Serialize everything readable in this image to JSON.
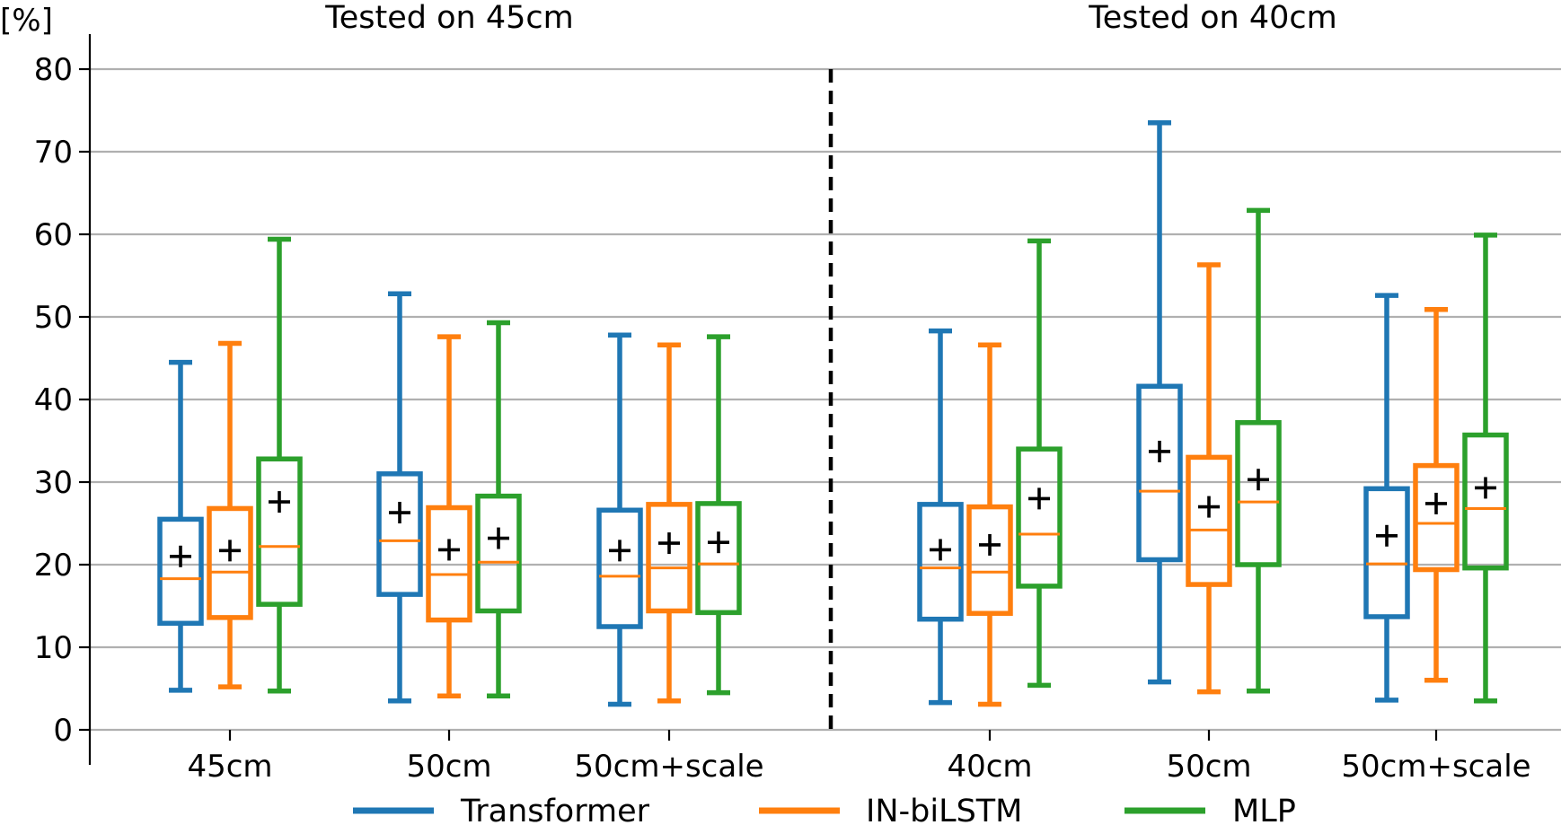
{
  "chart_data": {
    "type": "box",
    "ylabel": "[%]",
    "ylim": [
      0,
      84
    ],
    "yticks": [
      0,
      10,
      20,
      30,
      40,
      50,
      60,
      70,
      80
    ],
    "grid": "horizontal",
    "legend_placement": "bottom",
    "colors": {
      "Transformer": "#1f77b4",
      "IN-biLSTM": "#ff7f0e",
      "MLP": "#2ca02c"
    },
    "series": [
      {
        "name": "Transformer"
      },
      {
        "name": "IN-biLSTM"
      },
      {
        "name": "MLP"
      }
    ],
    "groups": [
      {
        "title": "Tested on 45cm",
        "categories": [
          {
            "label": "45cm",
            "boxes": [
              {
                "series": "Transformer",
                "min": 4.8,
                "q1": 12.9,
                "median": 18.3,
                "q3": 25.5,
                "max": 44.5,
                "mean": 21.0
              },
              {
                "series": "IN-biLSTM",
                "min": 5.2,
                "q1": 13.6,
                "median": 19.1,
                "q3": 26.8,
                "max": 46.8,
                "mean": 21.7
              },
              {
                "series": "MLP",
                "min": 4.7,
                "q1": 15.2,
                "median": 22.2,
                "q3": 32.8,
                "max": 59.4,
                "mean": 27.6
              }
            ]
          },
          {
            "label": "50cm",
            "boxes": [
              {
                "series": "Transformer",
                "min": 3.5,
                "q1": 16.4,
                "median": 22.9,
                "q3": 31.0,
                "max": 52.8,
                "mean": 26.3
              },
              {
                "series": "IN-biLSTM",
                "min": 4.1,
                "q1": 13.3,
                "median": 18.8,
                "q3": 26.9,
                "max": 47.6,
                "mean": 21.8
              },
              {
                "series": "MLP",
                "min": 4.1,
                "q1": 14.4,
                "median": 20.3,
                "q3": 28.3,
                "max": 49.3,
                "mean": 23.2
              }
            ]
          },
          {
            "label": "50cm+scale",
            "boxes": [
              {
                "series": "Transformer",
                "min": 3.1,
                "q1": 12.5,
                "median": 18.6,
                "q3": 26.6,
                "max": 47.8,
                "mean": 21.7
              },
              {
                "series": "IN-biLSTM",
                "min": 3.5,
                "q1": 14.4,
                "median": 19.6,
                "q3": 27.3,
                "max": 46.6,
                "mean": 22.6
              },
              {
                "series": "MLP",
                "min": 4.5,
                "q1": 14.2,
                "median": 20.1,
                "q3": 27.4,
                "max": 47.6,
                "mean": 22.7
              }
            ]
          }
        ]
      },
      {
        "title": "Tested on 40cm",
        "categories": [
          {
            "label": "40cm",
            "boxes": [
              {
                "series": "Transformer",
                "min": 3.3,
                "q1": 13.4,
                "median": 19.6,
                "q3": 27.3,
                "max": 48.3,
                "mean": 21.8
              },
              {
                "series": "IN-biLSTM",
                "min": 3.1,
                "q1": 14.1,
                "median": 19.1,
                "q3": 27.0,
                "max": 46.6,
                "mean": 22.4
              },
              {
                "series": "MLP",
                "min": 5.4,
                "q1": 17.4,
                "median": 23.7,
                "q3": 34.0,
                "max": 59.2,
                "mean": 28.0
              }
            ]
          },
          {
            "label": "50cm",
            "boxes": [
              {
                "series": "Transformer",
                "min": 5.8,
                "q1": 20.6,
                "median": 28.9,
                "q3": 41.6,
                "max": 73.5,
                "mean": 33.7
              },
              {
                "series": "IN-biLSTM",
                "min": 4.6,
                "q1": 17.6,
                "median": 24.2,
                "q3": 33.0,
                "max": 56.3,
                "mean": 27.0
              },
              {
                "series": "MLP",
                "min": 4.7,
                "q1": 20.0,
                "median": 27.6,
                "q3": 37.2,
                "max": 62.9,
                "mean": 30.3
              }
            ]
          },
          {
            "label": "50cm+scale",
            "boxes": [
              {
                "series": "Transformer",
                "min": 3.6,
                "q1": 13.7,
                "median": 20.1,
                "q3": 29.2,
                "max": 52.6,
                "mean": 23.5
              },
              {
                "series": "IN-biLSTM",
                "min": 6.0,
                "q1": 19.4,
                "median": 25.0,
                "q3": 32.0,
                "max": 50.9,
                "mean": 27.4
              },
              {
                "series": "MLP",
                "min": 3.5,
                "q1": 19.6,
                "median": 26.8,
                "q3": 35.7,
                "max": 59.9,
                "mean": 29.3
              }
            ]
          }
        ]
      }
    ]
  }
}
